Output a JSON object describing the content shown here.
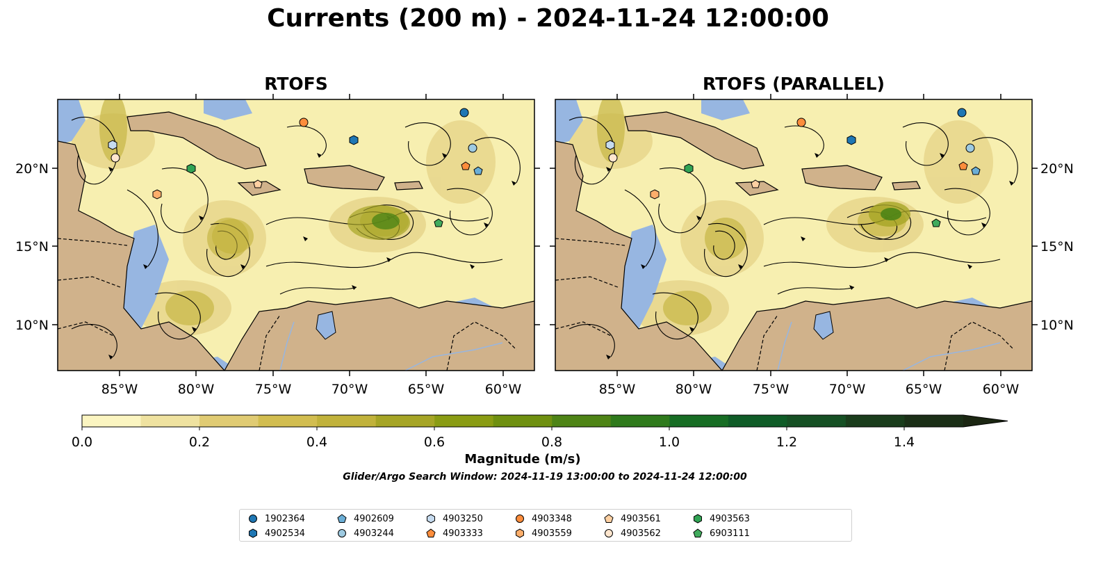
{
  "title": "Currents (200 m) - 2024-11-24 12:00:00",
  "panels": [
    {
      "title": "RTOFS"
    },
    {
      "title": "RTOFS (PARALLEL)"
    }
  ],
  "axes": {
    "lon_labels": [
      "85°W",
      "80°W",
      "75°W",
      "70°W",
      "65°W",
      "60°W"
    ],
    "lat_labels": [
      "20°N",
      "15°N",
      "10°N"
    ]
  },
  "colorbar": {
    "label": "Magnitude (m/s)",
    "tick_labels": [
      "0.0",
      "0.2",
      "0.4",
      "0.6",
      "0.8",
      "1.0",
      "1.2",
      "1.4"
    ],
    "colors": [
      "#fbf5c1",
      "#efe2a0",
      "#e0cb73",
      "#d2bd50",
      "#c1b23b",
      "#a6a526",
      "#8a9c13",
      "#6f9010",
      "#4e8416",
      "#2f7a1c",
      "#176d24",
      "#0f5c27",
      "#165024",
      "#1a3d1c",
      "#1b2f17",
      "#1b2612"
    ]
  },
  "search_window": "Glider/Argo Search Window: 2024-11-19 13:00:00 to 2024-11-24 12:00:00",
  "legend": [
    {
      "id": "1902364",
      "marker": "circle",
      "color": "#1f77b4"
    },
    {
      "id": "4902534",
      "marker": "hexagon",
      "color": "#1f77b4"
    },
    {
      "id": "4902609",
      "marker": "pentagon",
      "color": "#6baed6"
    },
    {
      "id": "4903244",
      "marker": "circle",
      "color": "#9ecae1"
    },
    {
      "id": "4903250",
      "marker": "hexagon",
      "color": "#c6dbef"
    },
    {
      "id": "4903333",
      "marker": "pentagon",
      "color": "#fd8d3c"
    },
    {
      "id": "4903348",
      "marker": "circle",
      "color": "#fd8d3c"
    },
    {
      "id": "4903559",
      "marker": "hexagon",
      "color": "#fdae6b"
    },
    {
      "id": "4903561",
      "marker": "pentagon",
      "color": "#fdd0a2"
    },
    {
      "id": "4903562",
      "marker": "circle",
      "color": "#fee6ce"
    },
    {
      "id": "4903563",
      "marker": "hexagon",
      "color": "#31a354"
    },
    {
      "id": "6903111",
      "marker": "pentagon",
      "color": "#41ab5d"
    }
  ],
  "colors": {
    "ocean": "#f7efb0",
    "land": "#d0b28b",
    "shallow_water": "#97b6e1",
    "coast": "#000000"
  }
}
